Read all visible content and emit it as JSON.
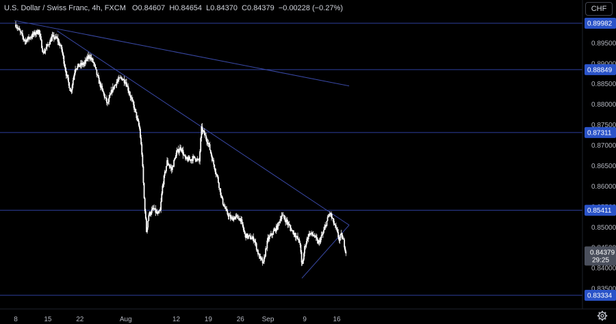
{
  "legend": {
    "symbol": "U.S. Dollar / Swiss Franc, 4h, FXCM",
    "o_label": "O",
    "o_value": "0.84607",
    "h_label": "H",
    "h_value": "0.84654",
    "l_label": "L",
    "l_value": "0.84370",
    "c_label": "C",
    "c_value": "0.84379",
    "change": "−0.00228 (−0.27%)"
  },
  "currency_button": "CHF",
  "colors": {
    "background": "#000000",
    "candle": "#ffffff",
    "hline": "#2e3f9e",
    "trendline": "#3a4aa8",
    "tag": "#2a53c8",
    "last_tag": "#4a4f5c",
    "axis_text": "#b2b5be"
  },
  "chart_data": {
    "type": "candlestick",
    "y_axis": {
      "range": [
        0.83,
        0.9055
      ],
      "ticks": [
        "0.89500",
        "0.89000",
        "0.88500",
        "0.88000",
        "0.87500",
        "0.87000",
        "0.86500",
        "0.86000",
        "0.85500",
        "0.85000",
        "0.84500",
        "0.84000",
        "0.83500",
        "0.83000"
      ]
    },
    "x_axis": {
      "ticks": [
        {
          "label": "8",
          "day": 0
        },
        {
          "label": "15",
          "day": 7
        },
        {
          "label": "22",
          "day": 14
        },
        {
          "label": "Aug",
          "day": 24
        },
        {
          "label": "12",
          "day": 35
        },
        {
          "label": "19",
          "day": 42
        },
        {
          "label": "26",
          "day": 49
        },
        {
          "label": "Sep",
          "day": 55
        },
        {
          "label": "9",
          "day": 63
        },
        {
          "label": "16",
          "day": 70
        }
      ]
    },
    "horizontal_levels": [
      {
        "value": 0.89982,
        "label": "0.89982"
      },
      {
        "value": 0.88849,
        "label": "0.88849"
      },
      {
        "value": 0.87311,
        "label": "0.87311"
      },
      {
        "value": 0.85411,
        "label": "0.85411"
      },
      {
        "value": 0.83334,
        "label": "0.83334"
      }
    ],
    "trendlines": [
      {
        "from": [
          -0.3,
          0.9005
        ],
        "to": [
          72.7,
          0.8845
        ]
      },
      {
        "from": [
          9.0,
          0.898
        ],
        "to": [
          72.7,
          0.8505
        ]
      },
      {
        "from": [
          62.4,
          0.8375
        ],
        "to": [
          72.7,
          0.8505
        ]
      }
    ],
    "last_price": {
      "value": 0.84379,
      "label": "0.84379",
      "countdown": "29:25"
    },
    "path": [
      [
        0,
        0.8995
      ],
      [
        2,
        0.8955
      ],
      [
        5,
        0.898
      ],
      [
        6,
        0.8925
      ],
      [
        8,
        0.8965
      ],
      [
        9,
        0.896
      ],
      [
        10,
        0.8935
      ],
      [
        11,
        0.8875
      ],
      [
        12,
        0.883
      ],
      [
        13,
        0.889
      ],
      [
        14,
        0.8895
      ],
      [
        15,
        0.89
      ],
      [
        16,
        0.892
      ],
      [
        17,
        0.89
      ],
      [
        18,
        0.886
      ],
      [
        19,
        0.883
      ],
      [
        20,
        0.88
      ],
      [
        21,
        0.8835
      ],
      [
        22,
        0.8855
      ],
      [
        23,
        0.8865
      ],
      [
        24,
        0.8855
      ],
      [
        25,
        0.882
      ],
      [
        26,
        0.8785
      ],
      [
        27,
        0.874
      ],
      [
        27.5,
        0.868
      ],
      [
        28,
        0.857
      ],
      [
        28.5,
        0.849
      ],
      [
        29,
        0.853
      ],
      [
        30,
        0.8545
      ],
      [
        31,
        0.853
      ],
      [
        31.5,
        0.854
      ],
      [
        32,
        0.86
      ],
      [
        33,
        0.866
      ],
      [
        34,
        0.864
      ],
      [
        35,
        0.868
      ],
      [
        36,
        0.8695
      ],
      [
        37,
        0.8665
      ],
      [
        38,
        0.8665
      ],
      [
        39,
        0.867
      ],
      [
        40,
        0.866
      ],
      [
        40.5,
        0.874
      ],
      [
        41,
        0.873
      ],
      [
        42,
        0.8705
      ],
      [
        43,
        0.866
      ],
      [
        44,
        0.862
      ],
      [
        45,
        0.8565
      ],
      [
        46,
        0.8535
      ],
      [
        47,
        0.852
      ],
      [
        48,
        0.8525
      ],
      [
        49,
        0.852
      ],
      [
        50,
        0.848
      ],
      [
        51,
        0.8475
      ],
      [
        52,
        0.847
      ],
      [
        53,
        0.843
      ],
      [
        54,
        0.841
      ],
      [
        54.5,
        0.8445
      ],
      [
        55,
        0.847
      ],
      [
        56,
        0.8485
      ],
      [
        57,
        0.85
      ],
      [
        58,
        0.853
      ],
      [
        59,
        0.8515
      ],
      [
        60,
        0.8495
      ],
      [
        61,
        0.848
      ],
      [
        62,
        0.846
      ],
      [
        62.4,
        0.84
      ],
      [
        63,
        0.845
      ],
      [
        63.5,
        0.847
      ],
      [
        64,
        0.8485
      ],
      [
        65,
        0.848
      ],
      [
        66,
        0.846
      ],
      [
        67,
        0.8485
      ],
      [
        68,
        0.852
      ],
      [
        68.5,
        0.8535
      ],
      [
        69,
        0.852
      ],
      [
        70,
        0.849
      ],
      [
        70.5,
        0.847
      ],
      [
        71,
        0.848
      ],
      [
        71.5,
        0.8465
      ],
      [
        72,
        0.8438
      ]
    ]
  }
}
